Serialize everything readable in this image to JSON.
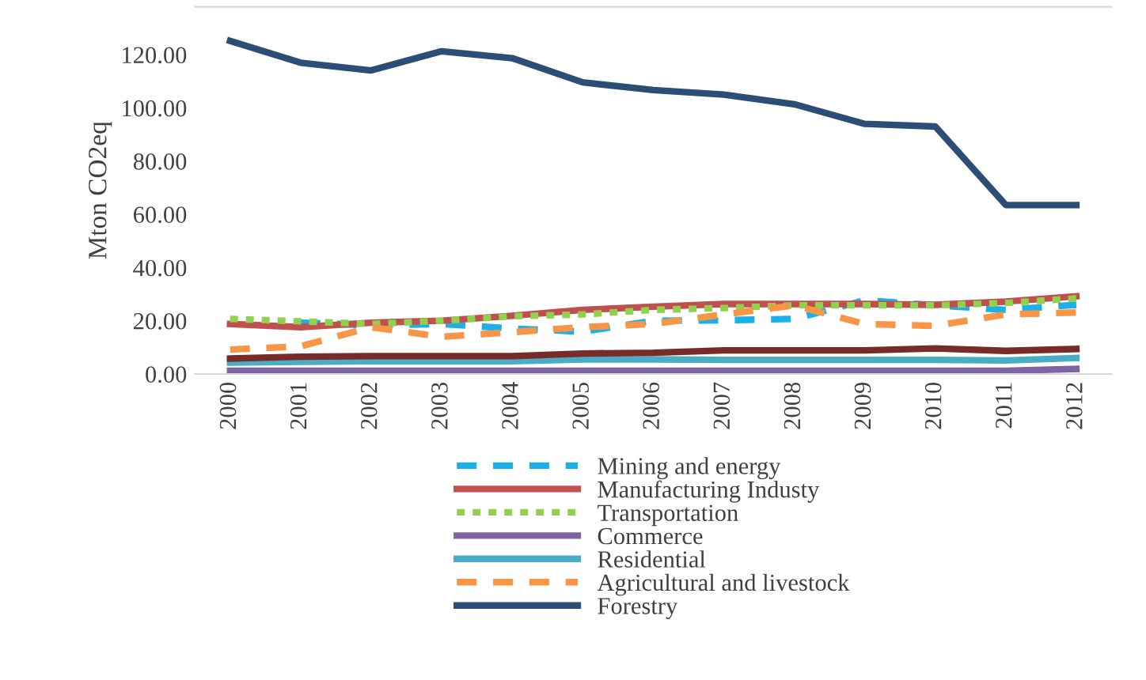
{
  "chart_data": {
    "type": "line",
    "ylabel": "Mton CO2eq",
    "categories": [
      "2000",
      "2001",
      "2002",
      "2003",
      "2004",
      "2005",
      "2006",
      "2007",
      "2008",
      "2009",
      "2010",
      "2011",
      "2012"
    ],
    "ylim": [
      0,
      138
    ],
    "yticks": [
      {
        "value": 0,
        "label": "0.00"
      },
      {
        "value": 20,
        "label": "20.00"
      },
      {
        "value": 40,
        "label": "40.00"
      },
      {
        "value": 60,
        "label": "60.00"
      },
      {
        "value": 80,
        "label": "80.00"
      },
      {
        "value": 100,
        "label": "100.00"
      },
      {
        "value": 120,
        "label": "120.00"
      }
    ],
    "grid": false,
    "legend": "bottom",
    "series": [
      {
        "name": "Mining and energy",
        "color": "#1cb0e8",
        "line_style": "dashed",
        "values": [
          null,
          19.3,
          18.3,
          18.8,
          17.1,
          15.9,
          20,
          20.2,
          20.7,
          27.7,
          25.8,
          24.1,
          26
        ]
      },
      {
        "name": "Manufacturing Industy",
        "color": "#c0504d",
        "line_style": "solid",
        "values": [
          18.8,
          17.6,
          19.3,
          20,
          21.9,
          24.1,
          25.3,
          26.3,
          26.3,
          26.3,
          26,
          27.2,
          29.2
        ]
      },
      {
        "name": "Transportation",
        "color": "#92d050",
        "line_style": "dotted",
        "values": [
          20.7,
          19.8,
          18.8,
          20,
          21.7,
          22.4,
          24.1,
          24.8,
          25.8,
          25.8,
          25.8,
          26.7,
          28.4
        ]
      },
      {
        "name": "Commerce",
        "color": "#8064a2",
        "line_style": "solid",
        "values": [
          1.2,
          1.2,
          1.2,
          1.2,
          1.2,
          1.2,
          1.2,
          1.2,
          1.2,
          1.2,
          1.2,
          1.2,
          1.9
        ]
      },
      {
        "name": "Residential",
        "color": "#4bacc6",
        "line_style": "solid",
        "values": [
          4.3,
          4.6,
          4.8,
          4.8,
          4.8,
          5.5,
          5.5,
          5.3,
          5.3,
          5.3,
          5.3,
          5.1,
          6
        ]
      },
      {
        "name": "Agricultural and livestock",
        "color": "#f79646",
        "line_style": "dashed",
        "values": [
          9.2,
          10.4,
          17.6,
          14,
          15.7,
          17.6,
          18.8,
          22.4,
          25.8,
          18.8,
          18.1,
          22.4,
          23.1
        ]
      },
      {
        "name": "Forestry",
        "color": "#2c4d75",
        "line_style": "solid",
        "values": [
          125.2,
          117,
          114.1,
          121.3,
          118.7,
          109.6,
          106.7,
          105,
          101.4,
          94,
          93,
          63.5,
          63.5
        ]
      },
      {
        "color": "#772c2a",
        "line_style": "solid",
        "values": [
          5.8,
          6.5,
          6.7,
          6.7,
          6.7,
          7.7,
          8,
          8.9,
          8.9,
          8.9,
          9.6,
          8.7,
          9.4
        ]
      }
    ]
  }
}
